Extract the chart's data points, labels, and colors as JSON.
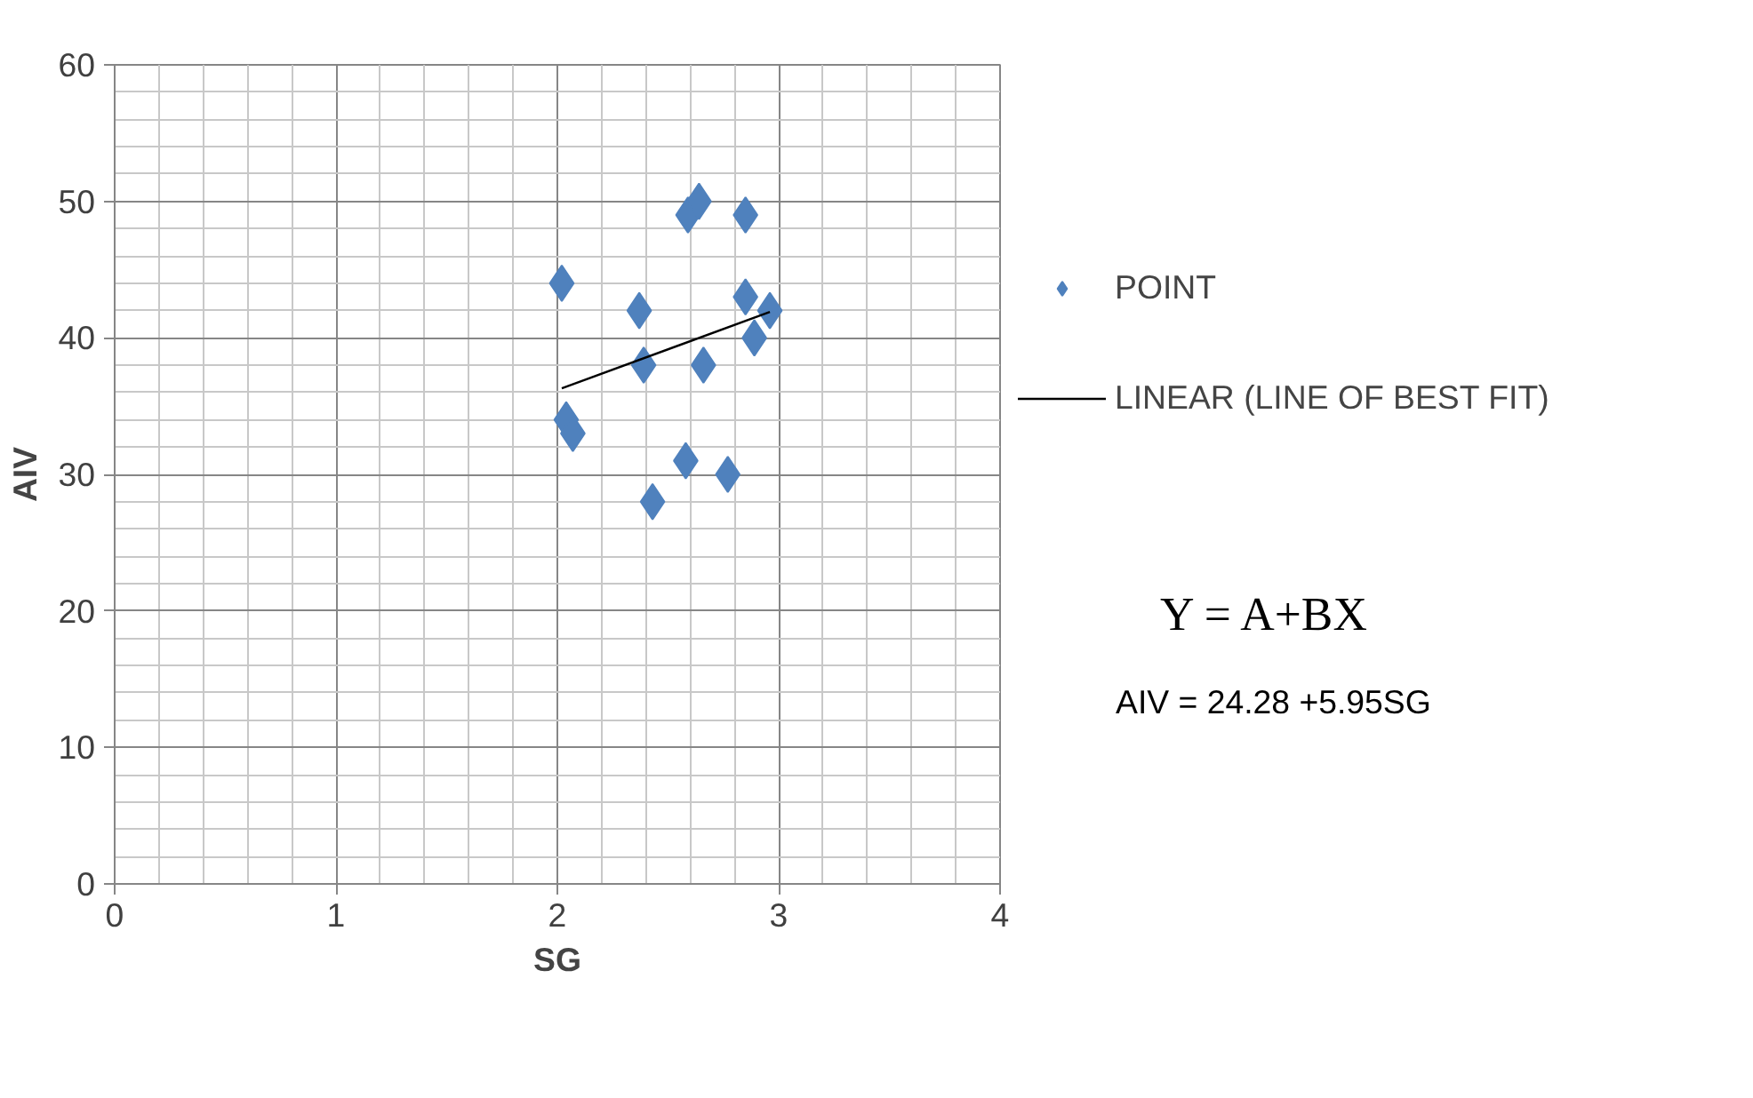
{
  "chart_data": {
    "type": "scatter",
    "xlabel": "SG",
    "ylabel": "AIV",
    "xlim": [
      0,
      4
    ],
    "xticks": [
      0,
      1,
      2,
      3,
      4
    ],
    "ylim": [
      0,
      60
    ],
    "yticks": [
      0,
      10,
      20,
      30,
      40,
      50,
      60
    ],
    "grid": true,
    "legend": "right",
    "marker": "diamond",
    "series": [
      {
        "name": "POINT",
        "color": "#4f81bd",
        "x": [
          2.02,
          2.37,
          2.39,
          2.04,
          2.07,
          2.43,
          2.58,
          2.59,
          2.64,
          2.66,
          2.77,
          2.85,
          2.85,
          2.89,
          2.96
        ],
        "values": [
          44,
          42,
          38,
          34,
          33,
          28,
          31,
          49,
          50,
          38,
          30,
          49,
          43,
          40,
          42
        ]
      },
      {
        "name": "LINEAR (LINE OF BEST FIT)",
        "type": "line",
        "color": "#000000",
        "x": [
          2.02,
          2.96
        ],
        "values": [
          36.3,
          41.9
        ],
        "marker": "none"
      }
    ],
    "annotations": [
      "Y = A+BX",
      "AIV = 24.28 +5.95SG"
    ]
  }
}
